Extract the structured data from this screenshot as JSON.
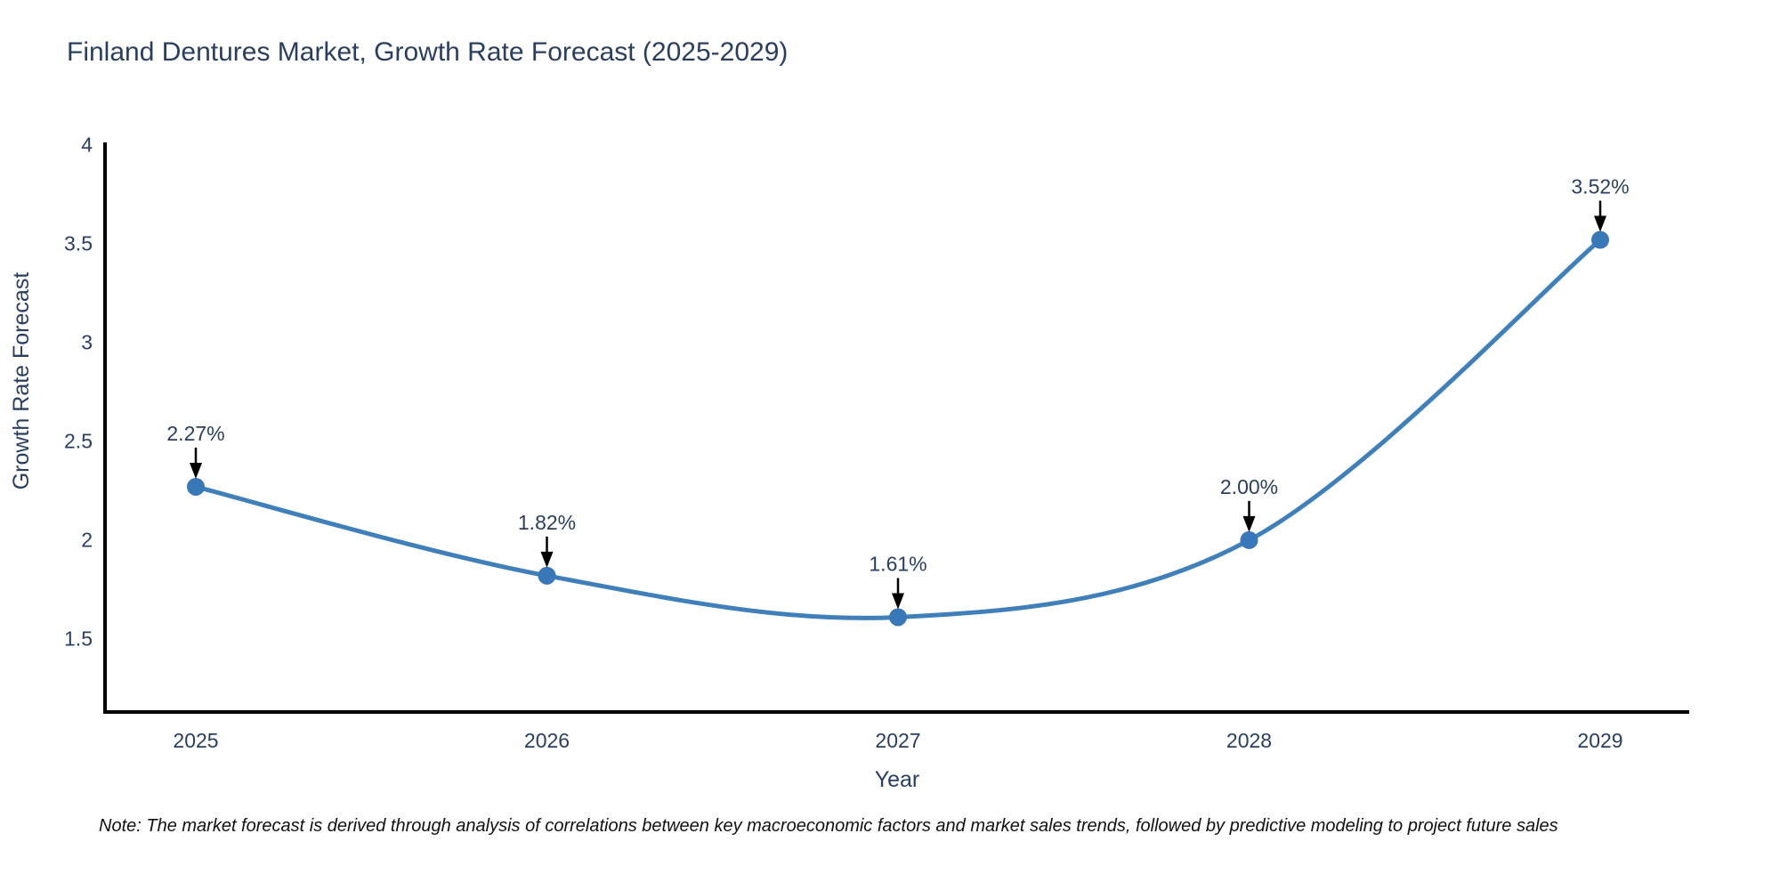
{
  "note": "Note: The market forecast is derived through analysis of correlations between key macroeconomic factors and market sales trends, followed by predictive modeling to project future sales",
  "chart_data": {
    "type": "line",
    "title": "Finland Dentures Market, Growth Rate Forecast (2025-2029)",
    "x": [
      2025,
      2026,
      2027,
      2028,
      2029
    ],
    "values": [
      2.27,
      1.82,
      1.61,
      2.0,
      3.52
    ],
    "point_labels": [
      "2.27%",
      "1.82%",
      "1.61%",
      "2.00%",
      "3.52%"
    ],
    "series_name": "Growth Rate Forecast",
    "xlabel": "Year",
    "ylabel": "Growth Rate Forecast",
    "xtick_labels": [
      "2025",
      "2026",
      "2027",
      "2028",
      "2029"
    ],
    "yticks": [
      1.5,
      2,
      2.5,
      3,
      3.5,
      4
    ],
    "ytick_labels": [
      "1.5",
      "2",
      "2.5",
      "3",
      "3.5",
      "4"
    ],
    "ylim": [
      1.13,
      4.0
    ],
    "line_shape": "spline",
    "grid": false,
    "legend_position": "none",
    "line_color": "#3f7fba",
    "marker_color": "#3878b8",
    "axis_color": "#000000",
    "text_color": "#2a3f5f",
    "annotation_arrow_color": "#000000"
  }
}
